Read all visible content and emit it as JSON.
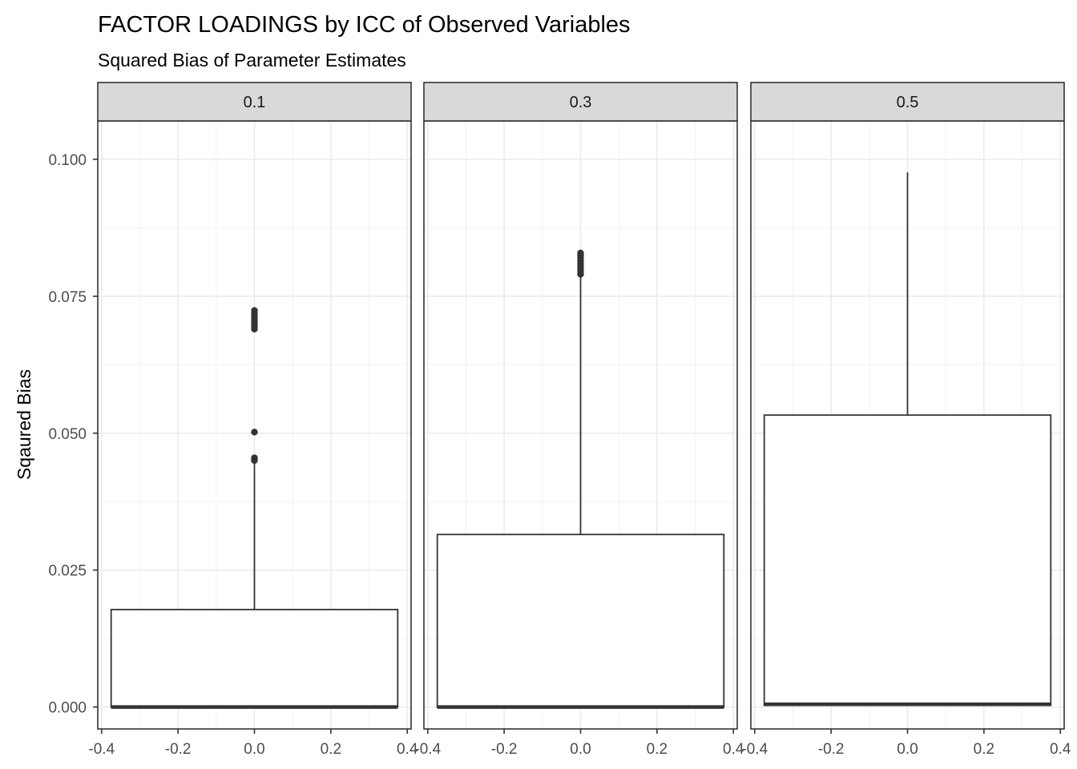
{
  "chart_data": {
    "type": "boxplot",
    "title": "FACTOR LOADINGS by ICC of Observed Variables",
    "subtitle": "Squared Bias of Parameter Estimates",
    "ylabel": "Sqaured Bias",
    "xlabel": "",
    "ylim": [
      -0.004,
      0.107
    ],
    "xlim": [
      -0.41,
      0.41
    ],
    "y_ticks": [
      "0.000",
      "0.025",
      "0.050",
      "0.075",
      "0.100"
    ],
    "x_ticks": [
      "-0.4",
      "-0.2",
      "0.0",
      "0.2",
      "0.4"
    ],
    "grid": true,
    "facets": [
      {
        "label": "0.1",
        "x_center": 0.0,
        "box_xmin": -0.375,
        "box_xmax": 0.375,
        "min": 0.0,
        "q1": 0.0,
        "median": 0.0,
        "q3": 0.0178,
        "whisker_high": 0.0445,
        "outliers": [
          0.045,
          0.0452,
          0.0455,
          0.0502,
          0.069,
          0.0695,
          0.07,
          0.0705,
          0.071,
          0.0715,
          0.072,
          0.0724
        ]
      },
      {
        "label": "0.3",
        "x_center": 0.0,
        "box_xmin": -0.375,
        "box_xmax": 0.375,
        "min": 0.0,
        "q1": 0.0,
        "median": 0.0,
        "q3": 0.0315,
        "whisker_high": 0.0788,
        "outliers": [
          0.079,
          0.0795,
          0.08,
          0.0805,
          0.081,
          0.0815,
          0.082,
          0.0825,
          0.0829
        ]
      },
      {
        "label": "0.5",
        "x_center": 0.0,
        "box_xmin": -0.375,
        "box_xmax": 0.375,
        "min": 0.0,
        "q1": 0.0003,
        "median": 0.0005,
        "q3": 0.0533,
        "whisker_high": 0.0976,
        "outliers": []
      }
    ]
  }
}
